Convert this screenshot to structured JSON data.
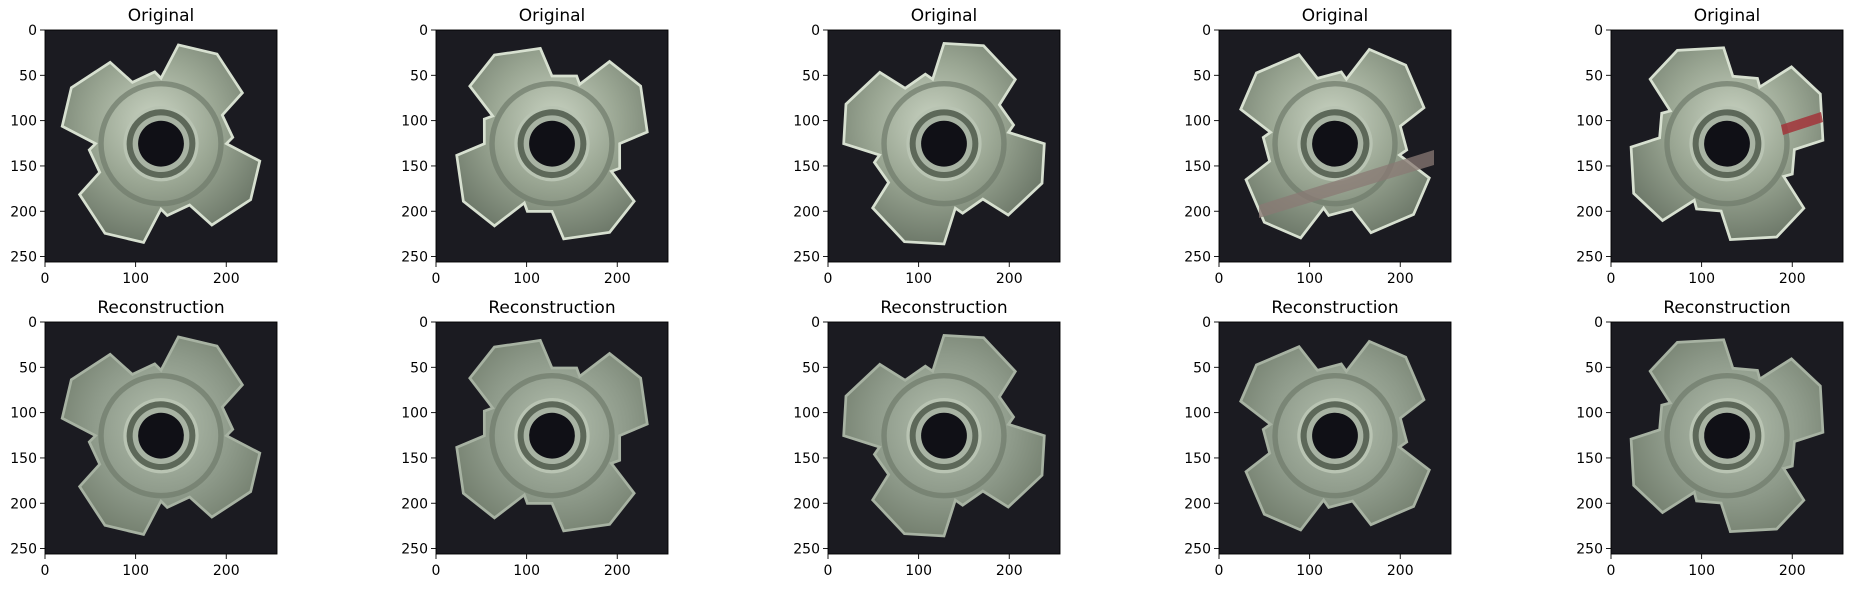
{
  "figure": {
    "rows": [
      {
        "panel_title": "Original",
        "kind": "original"
      },
      {
        "panel_title": "Reconstruction",
        "kind": "reconstruction"
      }
    ]
  },
  "chart_data": {
    "type": "image_grid",
    "columns": 5,
    "xticks": [
      0,
      100,
      200
    ],
    "yticks": [
      0,
      50,
      100,
      150,
      200,
      250
    ],
    "xlim": [
      0,
      256
    ],
    "ylim": [
      256,
      0
    ],
    "panels": [
      {
        "row": 0,
        "col": 0,
        "title": "Original",
        "rotation": 10,
        "defect": "none"
      },
      {
        "row": 0,
        "col": 1,
        "title": "Original",
        "rotation": 35,
        "defect": "none"
      },
      {
        "row": 0,
        "col": 2,
        "title": "Original",
        "rotation": 0,
        "defect": "none"
      },
      {
        "row": 0,
        "col": 3,
        "title": "Original",
        "rotation": 20,
        "defect": "scratch-band"
      },
      {
        "row": 0,
        "col": 4,
        "title": "Original",
        "rotation": 40,
        "defect": "red-mark"
      },
      {
        "row": 1,
        "col": 0,
        "title": "Reconstruction",
        "rotation": 10,
        "defect": "none"
      },
      {
        "row": 1,
        "col": 1,
        "title": "Reconstruction",
        "rotation": 35,
        "defect": "none"
      },
      {
        "row": 1,
        "col": 2,
        "title": "Reconstruction",
        "rotation": 0,
        "defect": "none"
      },
      {
        "row": 1,
        "col": 3,
        "title": "Reconstruction",
        "rotation": 20,
        "defect": "none"
      },
      {
        "row": 1,
        "col": 4,
        "title": "Reconstruction",
        "rotation": 40,
        "defect": "none"
      }
    ],
    "colors": {
      "background": "#1b1b21",
      "metal_original": "#9aa693",
      "metal_reconstruction": "#8e9a8a",
      "hole": "#101016",
      "scratch": "#8a7a74",
      "red_mark": "#a2343a"
    }
  }
}
